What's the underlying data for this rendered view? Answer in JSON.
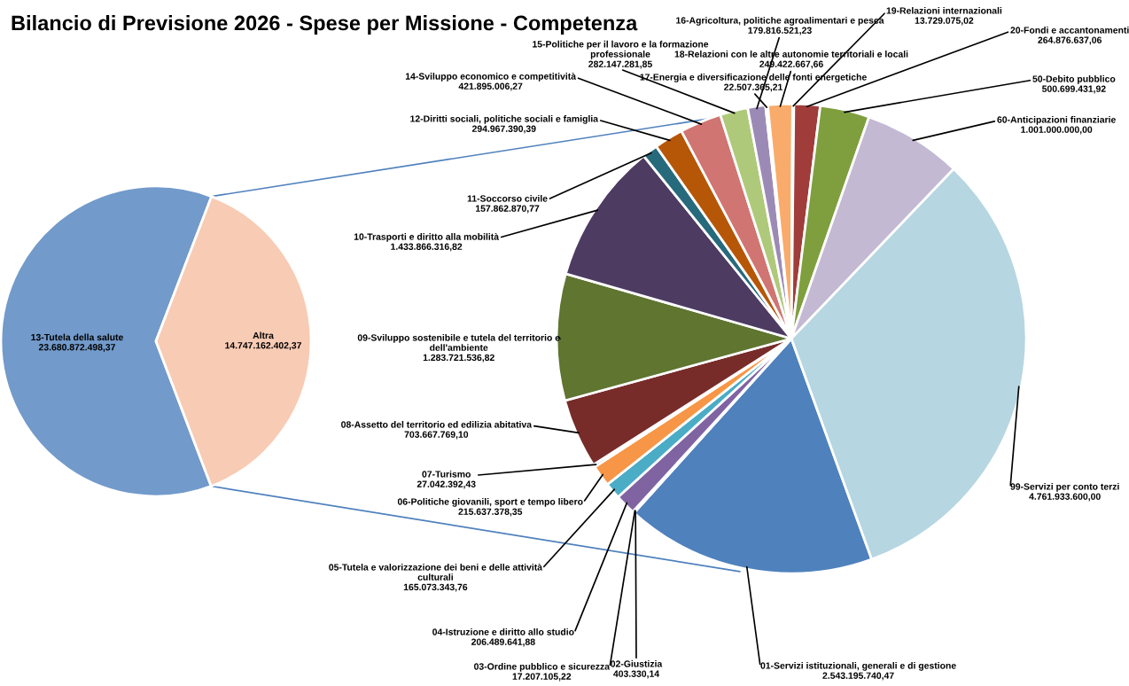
{
  "chart_data": [
    {
      "type": "pie",
      "title": "Bilancio di Previsione 2026 - Spese per Missione - Competenza",
      "categories": [
        "13-Tutela della salute",
        "Altra"
      ],
      "values": [
        23680872498.37,
        14747162402.37
      ],
      "value_labels": [
        "23.680.872.498,37",
        "14.747.162.402,37"
      ],
      "colors": [
        "#729acb",
        "#f8cbb4"
      ]
    },
    {
      "type": "pie",
      "categories": [
        "01-Servizi istituzionali, generali e di gestione",
        "02-Giustizia",
        "03-Ordine pubblico e sicurezza",
        "04-Istruzione e diritto allo studio",
        "05-Tutela e valorizzazione dei beni e delle attività culturali",
        "06-Politiche giovanili, sport e tempo libero",
        "07-Turismo",
        "08-Assetto del territorio ed edilizia abitativa",
        "09-Sviluppo sostenibile e tutela del territorio e dell'ambiente",
        "10-Trasporti e diritto alla mobilità",
        "11-Soccorso civile",
        "12-Diritti sociali, politiche sociali e famiglia",
        "14-Sviluppo economico e competitività",
        "15-Politiche per il lavoro e la formazione professionale",
        "16-Agricoltura, politiche agroalimentari e pesca",
        "17-Energia e diversificazione delle fonti energetiche",
        "18-Relazioni con le altre autonomie territoriali e locali",
        "19-Relazioni internazionali",
        "20-Fondi e accantonamenti",
        "50-Debito pubblico",
        "60-Anticipazioni finanziarie",
        "99-Servizi per conto terzi"
      ],
      "values": [
        2543195740.47,
        403330.14,
        17207105.22,
        206489641.88,
        165073343.76,
        215637378.35,
        27042392.43,
        703667769.1,
        1283721536.82,
        1433866316.82,
        157862870.77,
        294967390.39,
        421895006.27,
        282147281.85,
        179816521.23,
        22507365.21,
        249422667.66,
        13729075.02,
        264876637.06,
        500699431.92,
        1001000000.0,
        4761933600.0
      ],
      "value_labels": [
        "2.543.195.740,47",
        "403.330,14",
        "17.207.105,22",
        "206.489.641,88",
        "165.073.343,76",
        "215.637.378,35",
        "27.042.392,43",
        "703.667.769,10",
        "1.283.721.536,82",
        "1.433.866.316,82",
        "157.862.870,77",
        "294.967.390,39",
        "421.895.006,27",
        "282.147.281,85",
        "179.816.521,23",
        "22.507.365,21",
        "249.422.667,66",
        "13.729.075,02",
        "264.876.637,06",
        "500.699.431,92",
        "1.001.000.000,00",
        "4.761.933.600,00"
      ],
      "colors": [
        "#4f81bd",
        "#c0504d",
        "#9bbb59",
        "#8064a2",
        "#4bacc6",
        "#f79646",
        "#2c4d75",
        "#772c2a",
        "#5f7530",
        "#4d3b62",
        "#276a7c",
        "#b65708",
        "#d07572",
        "#afc97a",
        "#9c8ab6",
        "#6fb9d2",
        "#f9ab6b",
        "#4f81bd",
        "#a03c3a",
        "#7f9f3e",
        "#c3b9d3",
        "#b6d6e1"
      ]
    }
  ]
}
